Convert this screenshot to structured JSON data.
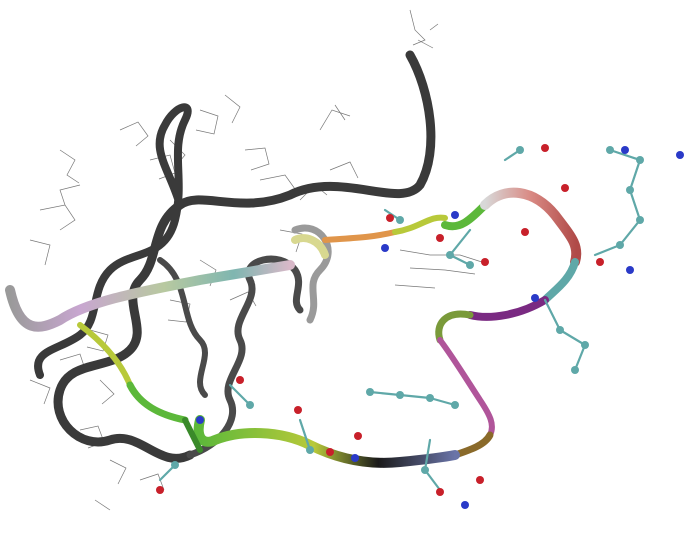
{
  "image": {
    "subject": "protein-cartoon-ribbon",
    "background_color": "#ffffff",
    "backbone_color": "#3a3a3a",
    "segment_colors": {
      "gray": "#4a4a4a",
      "light_gray": "#9a9a9a",
      "lavender": "#c8a6d0",
      "teal": "#7fb6b0",
      "orange": "#e0954a",
      "yellow_green": "#b8c93a",
      "green": "#5cb83a",
      "salmon": "#d98a84",
      "purple": "#7a2a82",
      "magenta": "#b0559a",
      "brown": "#8a6a2a",
      "slate_blue": "#6a74a8",
      "black": "#1a1a1a"
    },
    "atom_colors": {
      "carbon": "#5fa8a8",
      "oxygen": "#c8202a",
      "nitrogen": "#2a3ac8",
      "hydrogen": "#e8e8e8"
    }
  }
}
